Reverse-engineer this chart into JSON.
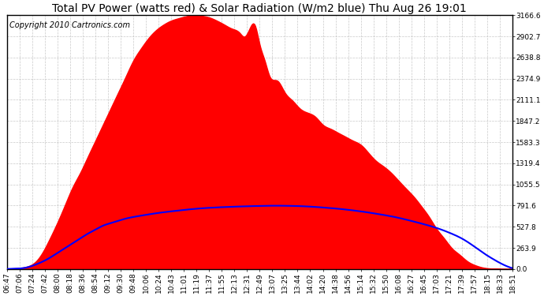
{
  "title": "Total PV Power (watts red) & Solar Radiation (W/m2 blue) Thu Aug 26 19:01",
  "copyright": "Copyright 2010 Cartronics.com",
  "background_color": "#ffffff",
  "plot_bg_color": "#ffffff",
  "grid_color": "#bbbbbb",
  "y_ticks": [
    0.0,
    263.9,
    527.8,
    791.6,
    1055.5,
    1319.4,
    1583.3,
    1847.2,
    2111.1,
    2374.9,
    2638.8,
    2902.7,
    3166.6
  ],
  "y_max": 3166.6,
  "x_labels": [
    "06:47",
    "07:06",
    "07:24",
    "07:42",
    "08:00",
    "08:18",
    "08:36",
    "08:54",
    "09:12",
    "09:30",
    "09:48",
    "10:06",
    "10:24",
    "10:43",
    "11:01",
    "11:19",
    "11:37",
    "11:55",
    "12:13",
    "12:31",
    "12:49",
    "13:07",
    "13:25",
    "13:44",
    "14:02",
    "14:20",
    "14:38",
    "14:56",
    "15:14",
    "15:32",
    "15:50",
    "16:08",
    "16:27",
    "16:45",
    "17:03",
    "17:21",
    "17:39",
    "17:57",
    "18:15",
    "18:33",
    "18:51"
  ],
  "red_fill_color": "#ff0000",
  "blue_line_color": "#0000ff",
  "title_fontsize": 10,
  "tick_fontsize": 6.5,
  "copyright_fontsize": 7,
  "pv_points_x": [
    0,
    0.02,
    0.04,
    0.055,
    0.07,
    0.085,
    0.1,
    0.115,
    0.13,
    0.145,
    0.16,
    0.175,
    0.19,
    0.205,
    0.22,
    0.235,
    0.25,
    0.265,
    0.28,
    0.295,
    0.31,
    0.325,
    0.34,
    0.355,
    0.37,
    0.385,
    0.4,
    0.415,
    0.43,
    0.445,
    0.46,
    0.47,
    0.48,
    0.49,
    0.5,
    0.51,
    0.52,
    0.535,
    0.55,
    0.565,
    0.58,
    0.595,
    0.61,
    0.625,
    0.64,
    0.655,
    0.67,
    0.685,
    0.7,
    0.715,
    0.73,
    0.745,
    0.76,
    0.775,
    0.79,
    0.805,
    0.82,
    0.835,
    0.85,
    0.865,
    0.88,
    0.895,
    0.91,
    0.925,
    0.94,
    0.96,
    0.98,
    1.0
  ],
  "pv_points_y": [
    0,
    10,
    30,
    80,
    200,
    380,
    580,
    800,
    1020,
    1200,
    1400,
    1600,
    1800,
    2000,
    2200,
    2400,
    2600,
    2750,
    2880,
    2980,
    3050,
    3100,
    3130,
    3155,
    3166,
    3160,
    3140,
    3100,
    3050,
    3000,
    2950,
    2900,
    3000,
    3050,
    2800,
    2600,
    2400,
    2350,
    2200,
    2100,
    2000,
    1950,
    1900,
    1800,
    1750,
    1700,
    1650,
    1600,
    1550,
    1450,
    1350,
    1280,
    1200,
    1100,
    1000,
    900,
    780,
    650,
    500,
    380,
    260,
    180,
    100,
    50,
    20,
    5,
    0,
    0
  ],
  "solar_points_x": [
    0,
    0.02,
    0.04,
    0.055,
    0.07,
    0.085,
    0.1,
    0.115,
    0.13,
    0.145,
    0.16,
    0.175,
    0.19,
    0.21,
    0.23,
    0.26,
    0.3,
    0.34,
    0.38,
    0.42,
    0.46,
    0.5,
    0.53,
    0.56,
    0.59,
    0.62,
    0.65,
    0.68,
    0.71,
    0.74,
    0.77,
    0.8,
    0.83,
    0.86,
    0.88,
    0.9,
    0.92,
    0.94,
    0.96,
    0.98,
    1.0
  ],
  "solar_points_y": [
    0,
    5,
    20,
    50,
    90,
    140,
    200,
    260,
    320,
    380,
    440,
    490,
    540,
    580,
    620,
    660,
    700,
    730,
    755,
    770,
    780,
    787,
    790,
    788,
    782,
    770,
    755,
    735,
    710,
    680,
    645,
    600,
    550,
    490,
    440,
    380,
    300,
    210,
    130,
    60,
    10
  ]
}
